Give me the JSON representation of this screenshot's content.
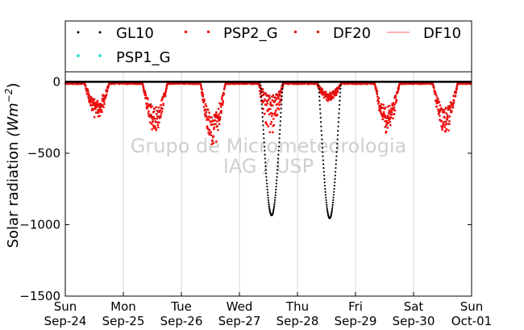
{
  "watermark": {
    "line1": "Grupo de Micrometeorologia",
    "line2": "IAG / USP"
  },
  "chart_data": {
    "type": "scatter",
    "title": "",
    "xlabel": "",
    "ylabel": "Solar radiation",
    "ylabel_unit": "(Wm",
    "ylabel_exp": "−2",
    "ylabel_close": ")",
    "xlim": [
      0,
      7
    ],
    "ylim": [
      -1500,
      70
    ],
    "yticks": [
      0,
      -500,
      -1000,
      -1500
    ],
    "ytick_labels": [
      "0",
      "−500",
      "−1000",
      "−1500"
    ],
    "xticks": [
      0,
      1,
      2,
      3,
      4,
      5,
      6,
      7
    ],
    "xtick_labels": [
      [
        "Sun",
        "Sep-24"
      ],
      [
        "Mon",
        "Sep-25"
      ],
      [
        "Tue",
        "Sep-26"
      ],
      [
        "Wed",
        "Sep-27"
      ],
      [
        "Thu",
        "Sep-28"
      ],
      [
        "Fri",
        "Sep-29"
      ],
      [
        "Sat",
        "Sep-30"
      ],
      [
        "Sun",
        "Oct-01"
      ]
    ],
    "grid": "vertical",
    "legend_position": "top",
    "series": [
      {
        "name": "GL10",
        "color": "#000000",
        "marker": "dot",
        "days": [
          {
            "day": 3,
            "peak": -930,
            "peak_pos": 0.52
          },
          {
            "day": 4,
            "peak": -950,
            "peak_pos": 0.52
          }
        ]
      },
      {
        "name": "PSP2_G",
        "color": "#ff0000",
        "marker": "dot",
        "days": [
          {
            "day": 0,
            "peak": -230
          },
          {
            "day": 1,
            "peak": -320
          },
          {
            "day": 2,
            "peak": -410
          },
          {
            "day": 3,
            "peak": -330
          },
          {
            "day": 4,
            "peak": -120
          },
          {
            "day": 5,
            "peak": -320
          },
          {
            "day": 6,
            "peak": -330
          }
        ]
      },
      {
        "name": "DF20",
        "color": "#dd1111",
        "marker": "dot",
        "days": [
          {
            "day": 0,
            "peak": -200
          },
          {
            "day": 1,
            "peak": -300
          },
          {
            "day": 2,
            "peak": -380
          },
          {
            "day": 3,
            "peak": -150
          },
          {
            "day": 4,
            "peak": -110
          },
          {
            "day": 5,
            "peak": -300
          },
          {
            "day": 6,
            "peak": -310
          }
        ]
      },
      {
        "name": "DF10",
        "color": "#ff8080",
        "marker": "line",
        "values": []
      },
      {
        "name": "PSP1_G",
        "color": "#40e0d0",
        "marker": "dot",
        "values": []
      }
    ],
    "hline": {
      "y": 0,
      "color": "#000000"
    }
  }
}
